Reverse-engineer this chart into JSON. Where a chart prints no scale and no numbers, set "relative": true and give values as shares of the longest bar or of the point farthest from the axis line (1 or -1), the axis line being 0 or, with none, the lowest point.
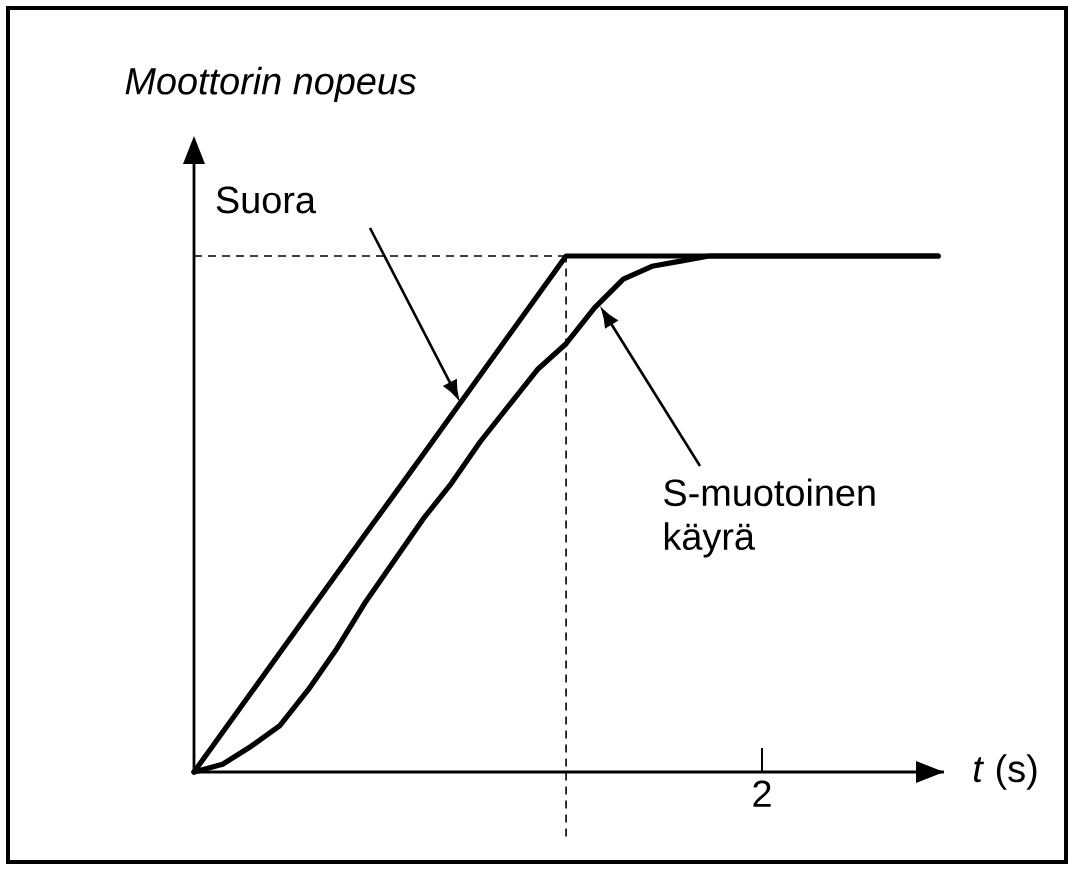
{
  "chart_data": {
    "type": "line",
    "relative": true,
    "ylabel": "Moottorin nopeus",
    "xlabel": "*t* (s)",
    "categories": [
      null,
      null,
      null,
      null,
      null,
      null,
      null,
      null,
      null,
      null,
      null,
      null,
      null,
      null,
      null,
      null,
      null,
      null,
      null,
      null,
      null,
      null,
      null,
      null,
      null,
      null,
      null
    ],
    "series": [
      {
        "color": "#000000",
        "values": [
          0,
          0.077,
          0.154,
          0.231,
          0.308,
          0.385,
          0.462,
          0.538,
          0.615,
          0.692,
          0.769,
          0.846,
          0.923,
          1,
          1,
          1,
          1,
          1,
          1,
          1,
          1,
          1,
          1,
          1,
          1,
          1,
          1
        ]
      },
      {
        "color": "#000000",
        "values": [
          0,
          0.015,
          0.05,
          0.09,
          0.16,
          0.24,
          0.33,
          0.41,
          0.49,
          0.56,
          0.64,
          0.71,
          0.78,
          0.83,
          0.9,
          0.955,
          0.98,
          0.99,
          1,
          1,
          1,
          1,
          1,
          1,
          1,
          1,
          1
        ]
      }
    ],
    "ref_lines": [
      {
        "axis": "y",
        "value": 1,
        "line_style": "dashed"
      }
    ],
    "annotations": [
      "Suora",
      "S-muotoinen käyrä",
      "2"
    ]
  }
}
